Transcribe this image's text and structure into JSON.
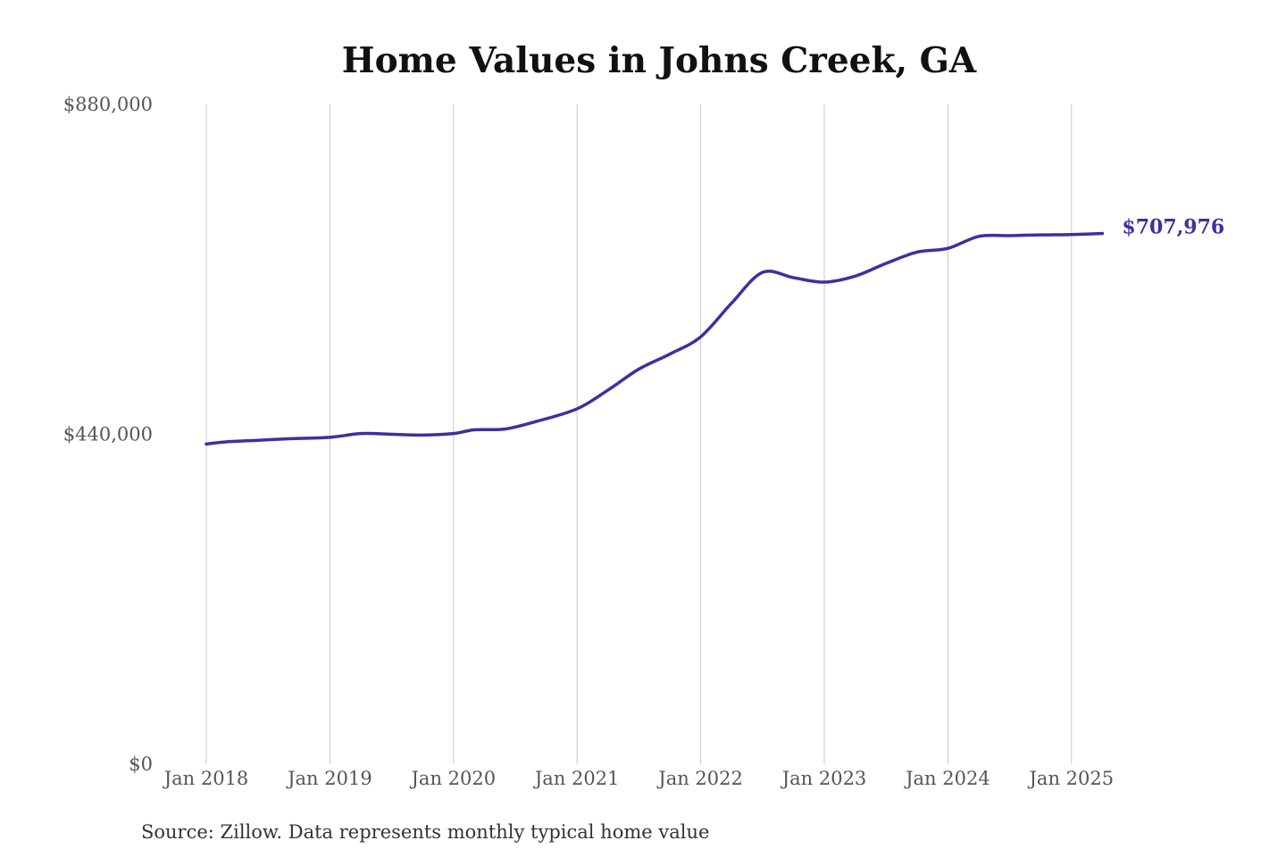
{
  "chart_data": {
    "type": "line",
    "title": "Home Values in Johns Creek, GA",
    "source": "Source: Zillow. Data represents monthly typical home value",
    "xlabel": "",
    "ylabel": "",
    "ylim": [
      0,
      880000
    ],
    "y_ticks": [
      0,
      440000,
      880000
    ],
    "y_tick_labels": [
      "$0",
      "$440,000",
      "$880,000"
    ],
    "x_ticks": [
      "2018-01",
      "2019-01",
      "2020-01",
      "2021-01",
      "2022-01",
      "2023-01",
      "2024-01",
      "2025-01"
    ],
    "x_tick_labels": [
      "Jan 2018",
      "Jan 2019",
      "Jan 2020",
      "Jan 2021",
      "Jan 2022",
      "Jan 2023",
      "Jan 2024",
      "Jan 2025"
    ],
    "grid": {
      "vertical": true,
      "horizontal": false
    },
    "colors": {
      "line": "#3a32a0",
      "grid": "#c8c8c8"
    },
    "series": [
      {
        "end_label": "$707,976",
        "points": [
          [
            "2018-01",
            427000
          ],
          [
            "2018-03",
            430000
          ],
          [
            "2018-06",
            432000
          ],
          [
            "2018-09",
            434000
          ],
          [
            "2019-01",
            436000
          ],
          [
            "2019-04",
            441000
          ],
          [
            "2019-07",
            440000
          ],
          [
            "2019-10",
            439000
          ],
          [
            "2020-01",
            441000
          ],
          [
            "2020-03",
            446000
          ],
          [
            "2020-06",
            447000
          ],
          [
            "2020-09",
            457000
          ],
          [
            "2021-01",
            474000
          ],
          [
            "2021-04",
            499000
          ],
          [
            "2021-07",
            527000
          ],
          [
            "2021-10",
            547000
          ],
          [
            "2022-01",
            570000
          ],
          [
            "2022-04",
            615000
          ],
          [
            "2022-07",
            656000
          ],
          [
            "2022-10",
            649000
          ],
          [
            "2023-01",
            643000
          ],
          [
            "2023-04",
            651000
          ],
          [
            "2023-07",
            668000
          ],
          [
            "2023-10",
            683000
          ],
          [
            "2024-01",
            688000
          ],
          [
            "2024-04",
            704000
          ],
          [
            "2024-07",
            705000
          ],
          [
            "2024-10",
            706000
          ],
          [
            "2025-01",
            706500
          ],
          [
            "2025-04",
            707976
          ]
        ]
      }
    ]
  }
}
